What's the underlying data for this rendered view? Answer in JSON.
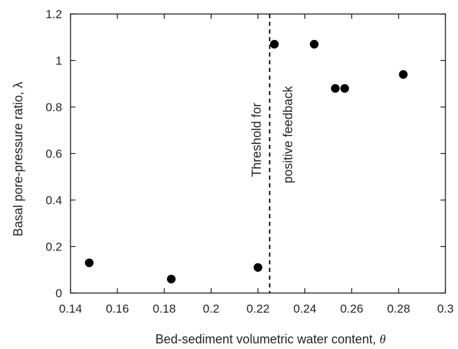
{
  "chart_data": {
    "type": "scatter",
    "title": "",
    "xlabel": "Bed-sediment volumetric water content, ",
    "xlabel_symbol": "θ",
    "ylabel": "Basal pore-pressure ratio, λ",
    "xlim": [
      0.14,
      0.3
    ],
    "ylim": [
      0,
      1.2
    ],
    "xticks": [
      0.14,
      0.16,
      0.18,
      0.2,
      0.22,
      0.24,
      0.26,
      0.28,
      0.3
    ],
    "yticks": [
      0,
      0.2,
      0.4,
      0.6,
      0.8,
      1,
      1.2
    ],
    "xtick_labels": [
      "0.14",
      "0.16",
      "0.18",
      "0.2",
      "0.22",
      "0.24",
      "0.26",
      "0.28",
      "0.3"
    ],
    "ytick_labels": [
      "0",
      "0.2",
      "0.4",
      "0.6",
      "0.8",
      "1",
      "1.2"
    ],
    "grid": false,
    "legend": "none",
    "marker_color": "#000000",
    "points": [
      {
        "x": 0.148,
        "y": 0.13
      },
      {
        "x": 0.183,
        "y": 0.06
      },
      {
        "x": 0.22,
        "y": 0.11
      },
      {
        "x": 0.227,
        "y": 1.07
      },
      {
        "x": 0.244,
        "y": 1.07
      },
      {
        "x": 0.253,
        "y": 0.88
      },
      {
        "x": 0.257,
        "y": 0.88
      },
      {
        "x": 0.282,
        "y": 0.94
      }
    ],
    "threshold": {
      "x": 0.225,
      "label_left": "Threshold for",
      "label_right": "positive feedback"
    }
  }
}
